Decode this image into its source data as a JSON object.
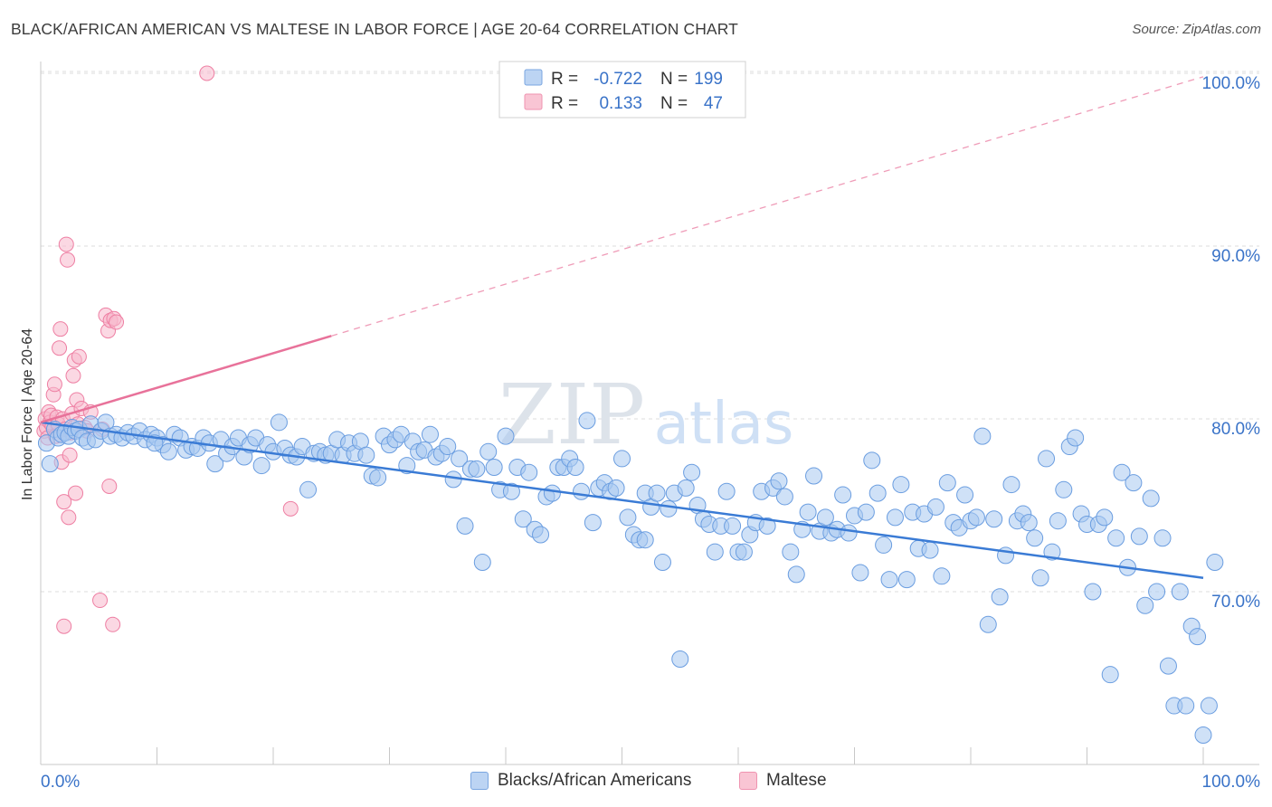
{
  "header": {
    "title": "BLACK/AFRICAN AMERICAN VS MALTESE IN LABOR FORCE | AGE 20-64 CORRELATION CHART",
    "source": "Source: ZipAtlas.com"
  },
  "watermark": {
    "zip": "ZIP",
    "atlas": "atlas"
  },
  "stats_legend": {
    "rows": [
      {
        "r_label": "R =",
        "r_value": "-0.722",
        "n_label": "N =",
        "n_value": "199"
      },
      {
        "r_label": "R =",
        "r_value": "0.133",
        "n_label": "N =",
        "n_value": "47"
      }
    ]
  },
  "colors": {
    "blue_fill": "#a8c8f0",
    "blue_stroke": "#6a9de0",
    "blue_line": "#3a7bd5",
    "pink_fill": "#f7b8cc",
    "pink_stroke": "#ee7fa3",
    "pink_line": "#e8729a",
    "tick_label": "#3a73c8",
    "grid": "#dddddd"
  },
  "chart_data": {
    "type": "scatter",
    "title": "BLACK/AFRICAN AMERICAN VS MALTESE IN LABOR FORCE | AGE 20-64 CORRELATION CHART",
    "xlabel": "",
    "ylabel": "In Labor Force | Age 20-64",
    "xlim": [
      0,
      100
    ],
    "ylim": [
      61.5,
      100.5
    ],
    "x_tick_labels": [
      "0.0%",
      "100.0%"
    ],
    "y_ticks": [
      70,
      80,
      90,
      100
    ],
    "y_tick_labels": [
      "70.0%",
      "80.0%",
      "90.0%",
      "100.0%"
    ],
    "grid": true,
    "legend_position": "bottom-center",
    "series": [
      {
        "name": "Blacks/African Americans",
        "color": "#a8c8f0",
        "r": -0.722,
        "n": 199,
        "trend": {
          "x": [
            0,
            100
          ],
          "y": [
            79.8,
            70.8
          ],
          "style": "solid"
        },
        "points": [
          [
            0.5,
            78.6
          ],
          [
            0.8,
            77.4
          ],
          [
            1.2,
            79.4
          ],
          [
            1.5,
            78.9
          ],
          [
            1.8,
            79.1
          ],
          [
            2.1,
            79.2
          ],
          [
            2.4,
            79.0
          ],
          [
            2.7,
            79.5
          ],
          [
            3.0,
            79.3
          ],
          [
            3.3,
            79.4
          ],
          [
            3.6,
            78.9
          ],
          [
            4.0,
            78.7
          ],
          [
            4.3,
            79.7
          ],
          [
            4.7,
            78.8
          ],
          [
            5.2,
            79.3
          ],
          [
            5.6,
            79.8
          ],
          [
            6.0,
            79.0
          ],
          [
            6.5,
            79.1
          ],
          [
            7.0,
            78.9
          ],
          [
            7.5,
            79.2
          ],
          [
            8.0,
            79.0
          ],
          [
            8.5,
            79.3
          ],
          [
            9.0,
            78.8
          ],
          [
            9.5,
            79.1
          ],
          [
            10.0,
            78.9
          ],
          [
            10.5,
            78.5
          ],
          [
            11.0,
            78.1
          ],
          [
            11.5,
            79.1
          ],
          [
            12.0,
            78.9
          ],
          [
            12.5,
            78.2
          ],
          [
            13.0,
            78.4
          ],
          [
            13.5,
            78.3
          ],
          [
            14.0,
            78.9
          ],
          [
            14.5,
            78.6
          ],
          [
            15.0,
            77.4
          ],
          [
            15.5,
            78.8
          ],
          [
            16.0,
            78.0
          ],
          [
            16.5,
            78.4
          ],
          [
            17.0,
            78.9
          ],
          [
            17.5,
            77.8
          ],
          [
            18.0,
            78.5
          ],
          [
            18.5,
            78.9
          ],
          [
            19.0,
            77.3
          ],
          [
            19.5,
            78.5
          ],
          [
            20.0,
            78.1
          ],
          [
            20.5,
            79.8
          ],
          [
            21.0,
            78.3
          ],
          [
            21.5,
            77.9
          ],
          [
            22.0,
            77.8
          ],
          [
            22.5,
            78.4
          ],
          [
            23.0,
            75.9
          ],
          [
            23.5,
            78.0
          ],
          [
            24.0,
            78.1
          ],
          [
            24.5,
            77.9
          ],
          [
            25.0,
            78.0
          ],
          [
            25.5,
            78.8
          ],
          [
            26.0,
            77.9
          ],
          [
            26.5,
            78.6
          ],
          [
            27.0,
            78.0
          ],
          [
            27.5,
            78.7
          ],
          [
            28.0,
            77.9
          ],
          [
            28.5,
            76.7
          ],
          [
            29.0,
            76.6
          ],
          [
            29.5,
            79.0
          ],
          [
            30.0,
            78.5
          ],
          [
            30.5,
            78.8
          ],
          [
            31.0,
            79.1
          ],
          [
            31.5,
            77.3
          ],
          [
            32.0,
            78.7
          ],
          [
            32.5,
            78.1
          ],
          [
            33.0,
            78.2
          ],
          [
            33.5,
            79.1
          ],
          [
            34.0,
            77.8
          ],
          [
            34.5,
            78.0
          ],
          [
            35.0,
            78.4
          ],
          [
            35.5,
            76.5
          ],
          [
            36.0,
            77.7
          ],
          [
            36.5,
            73.8
          ],
          [
            37.0,
            77.1
          ],
          [
            37.5,
            77.1
          ],
          [
            38.0,
            71.7
          ],
          [
            38.5,
            78.1
          ],
          [
            39.0,
            77.2
          ],
          [
            39.5,
            75.9
          ],
          [
            40.0,
            79.0
          ],
          [
            40.5,
            75.8
          ],
          [
            41.0,
            77.2
          ],
          [
            41.5,
            74.2
          ],
          [
            42.0,
            76.9
          ],
          [
            42.5,
            73.6
          ],
          [
            43.0,
            73.3
          ],
          [
            43.5,
            75.5
          ],
          [
            44.0,
            75.7
          ],
          [
            44.5,
            77.2
          ],
          [
            45.0,
            77.2
          ],
          [
            45.5,
            77.7
          ],
          [
            46.0,
            77.2
          ],
          [
            46.5,
            75.8
          ],
          [
            47.0,
            79.9
          ],
          [
            47.5,
            74.0
          ],
          [
            48.0,
            76.0
          ],
          [
            48.5,
            76.3
          ],
          [
            49.0,
            75.8
          ],
          [
            49.5,
            76.0
          ],
          [
            50.0,
            77.7
          ],
          [
            50.5,
            74.3
          ],
          [
            51.0,
            73.3
          ],
          [
            51.5,
            73.0
          ],
          [
            52.0,
            75.7
          ],
          [
            52.5,
            74.9
          ],
          [
            53.0,
            75.7
          ],
          [
            53.5,
            71.7
          ],
          [
            54.0,
            74.8
          ],
          [
            54.5,
            75.7
          ],
          [
            55.0,
            66.1
          ],
          [
            55.5,
            76.0
          ],
          [
            56.0,
            76.9
          ],
          [
            56.5,
            75.0
          ],
          [
            57.0,
            74.2
          ],
          [
            57.5,
            73.9
          ],
          [
            58.0,
            72.3
          ],
          [
            58.5,
            73.8
          ],
          [
            59.0,
            75.8
          ],
          [
            59.5,
            73.8
          ],
          [
            60.0,
            72.3
          ],
          [
            60.5,
            72.3
          ],
          [
            61.0,
            73.3
          ],
          [
            61.5,
            74.0
          ],
          [
            62.0,
            75.8
          ],
          [
            62.5,
            73.8
          ],
          [
            63.0,
            76.0
          ],
          [
            63.5,
            76.4
          ],
          [
            64.0,
            75.5
          ],
          [
            64.5,
            72.3
          ],
          [
            65.0,
            71.0
          ],
          [
            65.5,
            73.6
          ],
          [
            66.0,
            74.6
          ],
          [
            66.5,
            76.7
          ],
          [
            67.0,
            73.5
          ],
          [
            67.5,
            74.3
          ],
          [
            68.0,
            73.4
          ],
          [
            68.5,
            73.6
          ],
          [
            69.0,
            75.6
          ],
          [
            69.5,
            73.4
          ],
          [
            70.0,
            74.4
          ],
          [
            70.5,
            71.1
          ],
          [
            71.0,
            74.6
          ],
          [
            71.5,
            77.6
          ],
          [
            72.0,
            75.7
          ],
          [
            72.5,
            72.7
          ],
          [
            73.0,
            70.7
          ],
          [
            73.5,
            74.3
          ],
          [
            74.0,
            76.2
          ],
          [
            74.5,
            70.7
          ],
          [
            75.0,
            74.6
          ],
          [
            75.5,
            72.5
          ],
          [
            76.0,
            74.5
          ],
          [
            76.5,
            72.4
          ],
          [
            77.0,
            74.9
          ],
          [
            77.5,
            70.9
          ],
          [
            78.0,
            76.3
          ],
          [
            78.5,
            74.0
          ],
          [
            79.0,
            73.7
          ],
          [
            79.5,
            75.6
          ],
          [
            80.0,
            74.1
          ],
          [
            80.5,
            74.3
          ],
          [
            81.0,
            79.0
          ],
          [
            81.5,
            68.1
          ],
          [
            82.0,
            74.2
          ],
          [
            82.5,
            69.7
          ],
          [
            83.0,
            72.1
          ],
          [
            83.5,
            76.2
          ],
          [
            84.0,
            74.1
          ],
          [
            84.5,
            74.5
          ],
          [
            85.0,
            74.0
          ],
          [
            85.5,
            73.1
          ],
          [
            86.0,
            70.8
          ],
          [
            86.5,
            77.7
          ],
          [
            87.0,
            72.3
          ],
          [
            87.5,
            74.1
          ],
          [
            88.0,
            75.9
          ],
          [
            88.5,
            78.4
          ],
          [
            89.0,
            78.9
          ],
          [
            89.5,
            74.5
          ],
          [
            90.0,
            73.9
          ],
          [
            90.5,
            70.0
          ],
          [
            91.0,
            73.9
          ],
          [
            91.5,
            74.3
          ],
          [
            92.0,
            65.2
          ],
          [
            92.5,
            73.1
          ],
          [
            93.0,
            76.9
          ],
          [
            93.5,
            71.4
          ],
          [
            94.0,
            76.3
          ],
          [
            94.5,
            73.2
          ],
          [
            95.0,
            69.2
          ],
          [
            95.5,
            75.4
          ],
          [
            96.0,
            70.0
          ],
          [
            96.5,
            73.1
          ],
          [
            97.0,
            65.7
          ],
          [
            97.5,
            63.4
          ],
          [
            98.0,
            70.0
          ],
          [
            98.5,
            63.4
          ],
          [
            99.0,
            68.0
          ],
          [
            99.5,
            67.4
          ],
          [
            100.0,
            61.7
          ],
          [
            100.5,
            63.4
          ],
          [
            101.0,
            71.7
          ],
          [
            52.0,
            73.0
          ],
          [
            9.8,
            78.6
          ]
        ]
      },
      {
        "name": "Maltese",
        "color": "#f7b8cc",
        "r": 0.133,
        "n": 47,
        "trend": {
          "x": [
            0,
            25
          ],
          "y": [
            79.8,
            84.8
          ],
          "style": "solid",
          "dashed_to": [
            100,
            99.8
          ]
        },
        "points": [
          [
            0.3,
            79.3
          ],
          [
            0.4,
            80.0
          ],
          [
            0.5,
            79.5
          ],
          [
            0.6,
            78.9
          ],
          [
            0.7,
            80.4
          ],
          [
            0.8,
            79.8
          ],
          [
            0.9,
            80.2
          ],
          [
            1.0,
            79.6
          ],
          [
            1.1,
            81.4
          ],
          [
            1.2,
            82.0
          ],
          [
            1.3,
            79.0
          ],
          [
            1.4,
            80.1
          ],
          [
            1.5,
            79.7
          ],
          [
            1.6,
            84.1
          ],
          [
            1.7,
            85.2
          ],
          [
            1.8,
            77.5
          ],
          [
            1.9,
            80.0
          ],
          [
            2.0,
            75.2
          ],
          [
            2.1,
            79.4
          ],
          [
            2.2,
            90.1
          ],
          [
            2.3,
            89.2
          ],
          [
            2.4,
            74.3
          ],
          [
            2.5,
            77.9
          ],
          [
            2.6,
            79.2
          ],
          [
            2.7,
            80.3
          ],
          [
            2.8,
            82.5
          ],
          [
            2.9,
            83.4
          ],
          [
            3.0,
            75.7
          ],
          [
            3.1,
            81.1
          ],
          [
            3.2,
            79.7
          ],
          [
            3.3,
            83.6
          ],
          [
            3.5,
            80.6
          ],
          [
            3.8,
            79.5
          ],
          [
            4.0,
            79.3
          ],
          [
            4.3,
            80.4
          ],
          [
            5.1,
            69.5
          ],
          [
            5.3,
            79.4
          ],
          [
            5.6,
            86.0
          ],
          [
            5.8,
            85.1
          ],
          [
            6.0,
            85.7
          ],
          [
            6.3,
            85.8
          ],
          [
            6.5,
            85.6
          ],
          [
            5.9,
            76.1
          ],
          [
            6.2,
            68.1
          ],
          [
            14.3,
            100.0
          ],
          [
            21.5,
            74.8
          ],
          [
            2.0,
            68.0
          ]
        ]
      }
    ]
  },
  "bottom_legend": {
    "items": [
      {
        "label": "Blacks/African Americans"
      },
      {
        "label": "Maltese"
      }
    ]
  }
}
